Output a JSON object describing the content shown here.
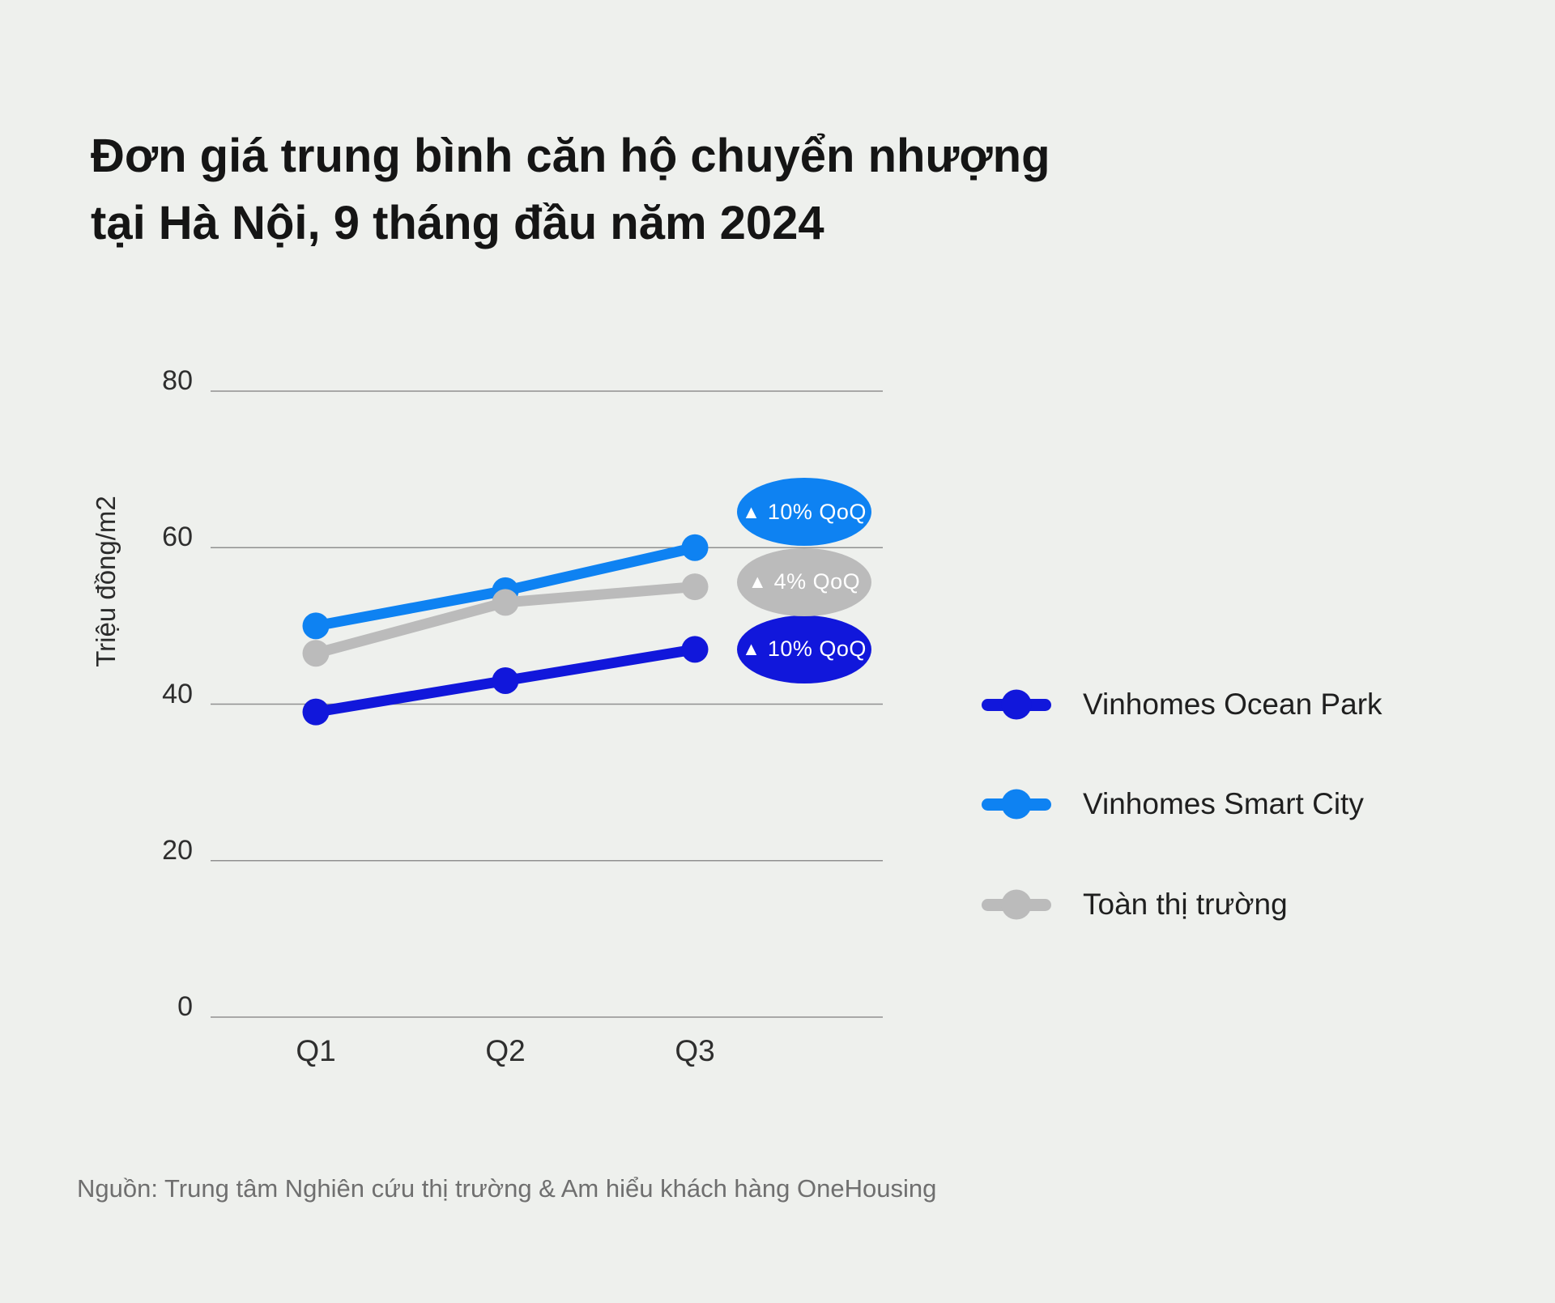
{
  "title": {
    "line1": "Đơn giá trung bình căn hộ chuyển nhượng",
    "line2": "tại Hà Nội, 9 tháng đầu năm 2024"
  },
  "source": "Nguồn: Trung tâm Nghiên cứu thị trường & Am hiểu khách hàng OneHousing",
  "colors": {
    "background": "#EEF0ED",
    "dark_blue": "#1117DB",
    "light_blue": "#0E82F2",
    "gray": "#BBBBBB",
    "gridline": "#909090",
    "tick_text": "#2E2E2E",
    "legend_text": "#1F1F1F",
    "source_text": "#6F6F6F",
    "badge_text": "#FFFFFF"
  },
  "chart_data": {
    "type": "line",
    "title": "Đơn giá trung bình căn hộ chuyển nhượng tại Hà Nội, 9 tháng đầu năm 2024",
    "categories": [
      "Q1",
      "Q2",
      "Q3"
    ],
    "ylabel": "Triệu đồng/m2",
    "xlabel": "",
    "yticks": [
      0,
      20,
      40,
      60,
      80
    ],
    "ylim": [
      0,
      80
    ],
    "grid": true,
    "legend_position": "right",
    "series": [
      {
        "name": "Vinhomes Ocean Park",
        "color_key": "dark_blue",
        "values": [
          39,
          43,
          47
        ],
        "badge": {
          "icon": "triangle-up",
          "label": "10% QoQ"
        }
      },
      {
        "name": "Vinhomes Smart City",
        "color_key": "light_blue",
        "values": [
          50,
          54.5,
          60
        ],
        "badge": {
          "icon": "triangle-up",
          "label": "10% QoQ"
        }
      },
      {
        "name": "Toàn thị trường",
        "color_key": "gray",
        "values": [
          46.5,
          53,
          55
        ],
        "badge": {
          "icon": "triangle-up",
          "label": "4% QoQ"
        }
      }
    ]
  }
}
